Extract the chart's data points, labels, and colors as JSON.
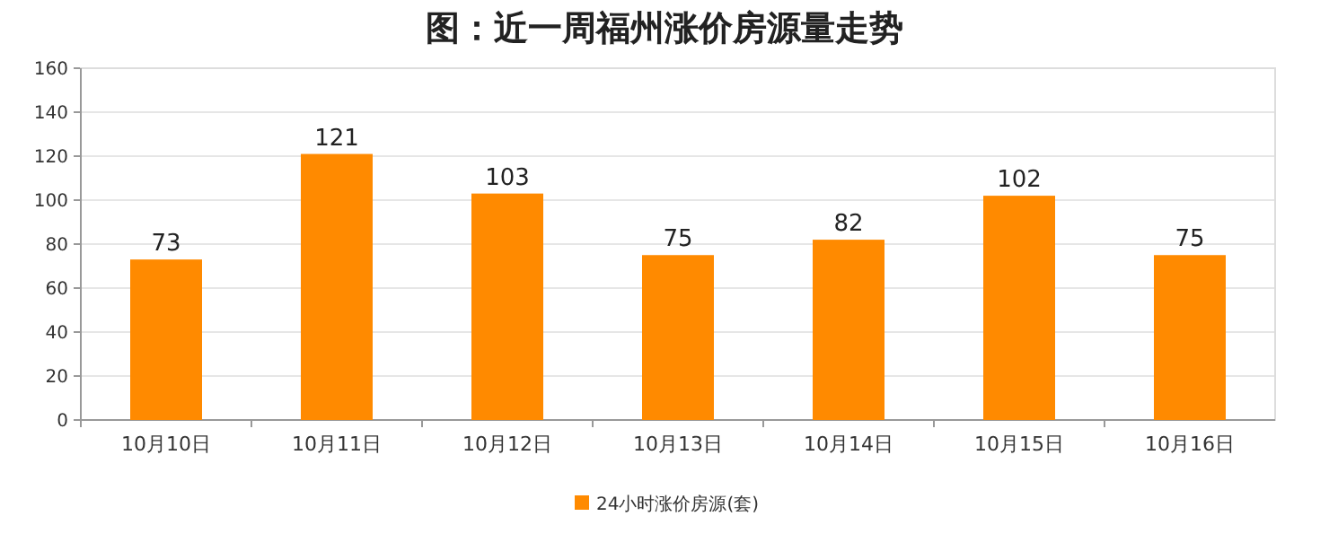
{
  "chart_data": {
    "type": "bar",
    "title": "图：近一周福州涨价房源量走势",
    "categories": [
      "10月10日",
      "10月11日",
      "10月12日",
      "10月13日",
      "10月14日",
      "10月15日",
      "10月16日"
    ],
    "series": [
      {
        "name": "24小时涨价房源(套)",
        "color": "#ff8a00",
        "values": [
          73,
          121,
          103,
          75,
          82,
          102,
          75
        ]
      }
    ],
    "ylim": [
      0,
      160
    ],
    "yticks": [
      0,
      20,
      40,
      60,
      80,
      100,
      120,
      140,
      160
    ],
    "grid": "y",
    "legend": "bottom",
    "data_labels": true
  }
}
